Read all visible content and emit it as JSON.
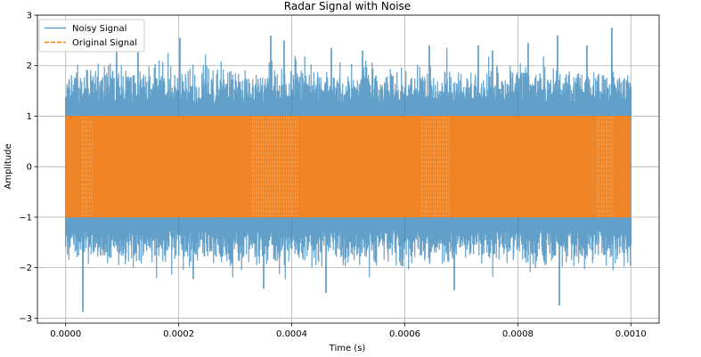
{
  "chart_data": {
    "type": "line",
    "title": "Radar Signal with Noise",
    "xlabel": "Time (s)",
    "ylabel": "Amplitude",
    "xlim": [
      -5e-05,
      0.00105
    ],
    "ylim": [
      -3.1,
      3.0
    ],
    "x_ticks": [
      {
        "value": 0.0,
        "label": "0.0000"
      },
      {
        "value": 0.0002,
        "label": "0.0002"
      },
      {
        "value": 0.0004,
        "label": "0.0004"
      },
      {
        "value": 0.0006,
        "label": "0.0006"
      },
      {
        "value": 0.0008,
        "label": "0.0008"
      },
      {
        "value": 0.001,
        "label": "0.0010"
      }
    ],
    "y_ticks": [
      {
        "value": -3,
        "label": "−3"
      },
      {
        "value": -2,
        "label": "−2"
      },
      {
        "value": -1,
        "label": "−1"
      },
      {
        "value": 0,
        "label": "0"
      },
      {
        "value": 1,
        "label": "1"
      },
      {
        "value": 2,
        "label": "2"
      },
      {
        "value": 3,
        "label": "3"
      }
    ],
    "grid": true,
    "legend_position": "top-left",
    "x_range": [
      0.0,
      0.001
    ],
    "series": [
      {
        "name": "Noisy Signal",
        "style": "solid",
        "color": "#1f77b4",
        "opacity": 0.7,
        "envelope_typical": [
          -1.75,
          1.75
        ],
        "peaks": [
          {
            "x": 3e-05,
            "y": -2.88
          },
          {
            "x": 9e-05,
            "y": 2.45
          },
          {
            "x": 0.000128,
            "y": 2.27
          },
          {
            "x": 0.000202,
            "y": 2.55
          },
          {
            "x": 0.000225,
            "y": -2.23
          },
          {
            "x": 0.00035,
            "y": -2.42
          },
          {
            "x": 0.000363,
            "y": 2.6
          },
          {
            "x": 0.000386,
            "y": 2.5
          },
          {
            "x": 0.00046,
            "y": -2.5
          },
          {
            "x": 0.00047,
            "y": 2.35
          },
          {
            "x": 0.000526,
            "y": 2.3
          },
          {
            "x": 0.000643,
            "y": 2.4
          },
          {
            "x": 0.000688,
            "y": -2.45
          },
          {
            "x": 0.00073,
            "y": 2.4
          },
          {
            "x": 0.000755,
            "y": 2.3
          },
          {
            "x": 0.000818,
            "y": 2.45
          },
          {
            "x": 0.00087,
            "y": 2.6
          },
          {
            "x": 0.000873,
            "y": -2.75
          },
          {
            "x": 0.000922,
            "y": 2.4
          },
          {
            "x": 0.000966,
            "y": 2.75
          }
        ]
      },
      {
        "name": "Original Signal",
        "style": "dashed",
        "color": "#ff7f0e",
        "amplitude": 1.0,
        "description_level": 1.0
      }
    ]
  },
  "colors": {
    "noisy": "#1f77b4",
    "original": "#ff7f0e",
    "original_fill": "#ef8527",
    "grid": "#b0b0b0",
    "axes": "#000000"
  }
}
